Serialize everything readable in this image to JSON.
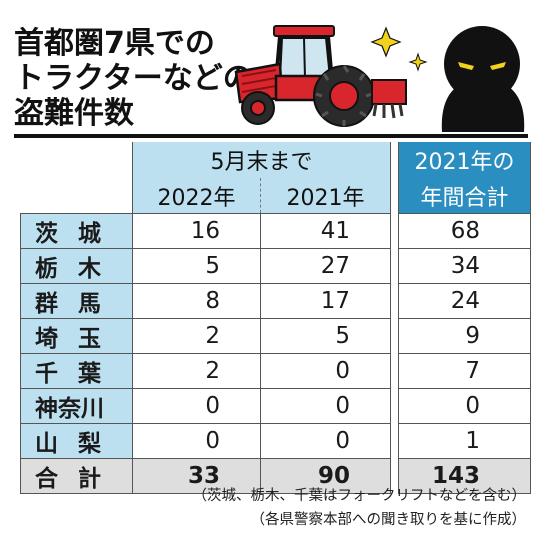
{
  "title_lines": [
    "首都圏7県での",
    "トラクターなどの",
    "盗難件数"
  ],
  "header": {
    "period": "5月末まで",
    "year_a": "2022年",
    "year_b": "2021年",
    "total_line1": "2021年の",
    "total_line2": "年間合計"
  },
  "rows": [
    {
      "pref": "茨 城",
      "y2022": "16",
      "y2021": "41",
      "total2021": "68"
    },
    {
      "pref": "栃 木",
      "y2022": "5",
      "y2021": "27",
      "total2021": "34"
    },
    {
      "pref": "群 馬",
      "y2022": "8",
      "y2021": "17",
      "total2021": "24"
    },
    {
      "pref": "埼 玉",
      "y2022": "2",
      "y2021": "5",
      "total2021": "9"
    },
    {
      "pref": "千 葉",
      "y2022": "2",
      "y2021": "0",
      "total2021": "7"
    },
    {
      "pref": "神奈川",
      "y2022": "0",
      "y2021": "0",
      "total2021": "0"
    },
    {
      "pref": "山 梨",
      "y2022": "0",
      "y2021": "0",
      "total2021": "1"
    }
  ],
  "sum": {
    "pref": "合 計",
    "y2022": "33",
    "y2021": "90",
    "total2021": "143"
  },
  "notes": [
    "（茨城、栃木、千葉はフォークリフトなどを含む）",
    "（各県警察本部への聞き取りを基に作成）"
  ],
  "colors": {
    "header_light_blue": "#bde0f0",
    "header_dark_blue": "#2a8fc0",
    "sum_gray": "#dedede",
    "tractor_red": "#d9262c"
  },
  "illustration": [
    "tractor-icon",
    "sparkle-icon",
    "thief-icon"
  ]
}
